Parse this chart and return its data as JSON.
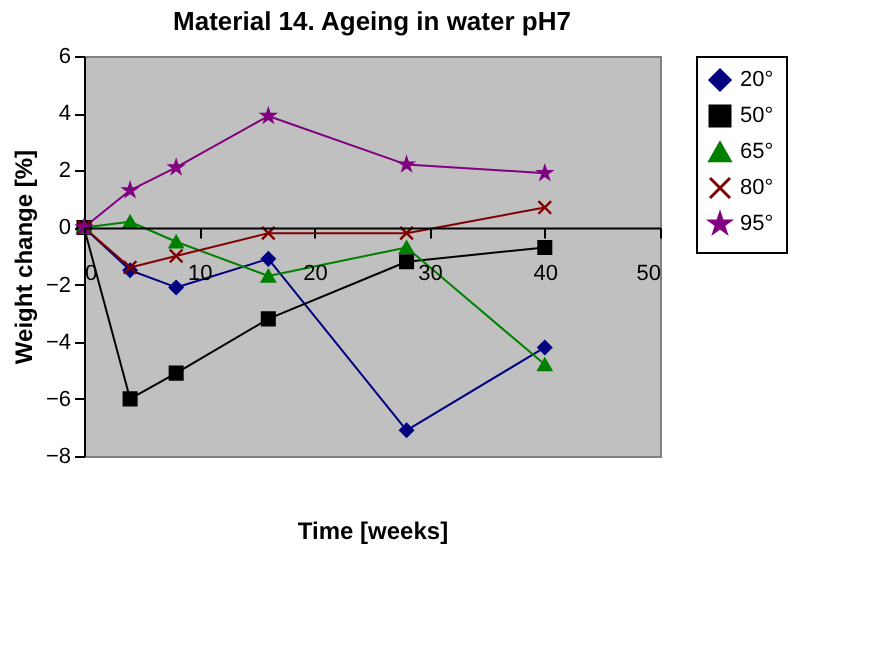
{
  "chart_data": {
    "type": "line",
    "title": "Material 14. Ageing in water pH7",
    "xlabel": "Time [weeks]",
    "ylabel": "Weight change [%]",
    "x": [
      0,
      4,
      8,
      16,
      28,
      40
    ],
    "series": [
      {
        "name": "20°",
        "color": "#000080",
        "marker": "diamond",
        "values": [
          0,
          -1.5,
          -2.1,
          -1.1,
          -7.1,
          -4.2
        ]
      },
      {
        "name": "50°",
        "color": "#000000",
        "marker": "square",
        "values": [
          0,
          -6.0,
          -5.1,
          -3.2,
          -1.2,
          -0.7
        ]
      },
      {
        "name": "65°",
        "color": "#008000",
        "marker": "triangle",
        "values": [
          0,
          0.2,
          -0.5,
          -1.7,
          -0.7,
          -4.8
        ]
      },
      {
        "name": "80°",
        "color": "#800000",
        "marker": "cross",
        "values": [
          0,
          -1.4,
          -1.0,
          -0.2,
          -0.2,
          0.7
        ]
      },
      {
        "name": "95°",
        "color": "#800080",
        "marker": "star",
        "values": [
          0,
          1.3,
          2.1,
          3.9,
          2.2,
          1.9
        ]
      }
    ],
    "xlim": [
      0,
      50
    ],
    "xticks": [
      0,
      10,
      20,
      30,
      40,
      50
    ],
    "ylim": [
      -8,
      6
    ],
    "yticks": [
      -8,
      -6,
      -4,
      -2,
      0,
      2,
      4,
      6
    ],
    "grid": false,
    "legend": "right",
    "line_style": "solid"
  }
}
